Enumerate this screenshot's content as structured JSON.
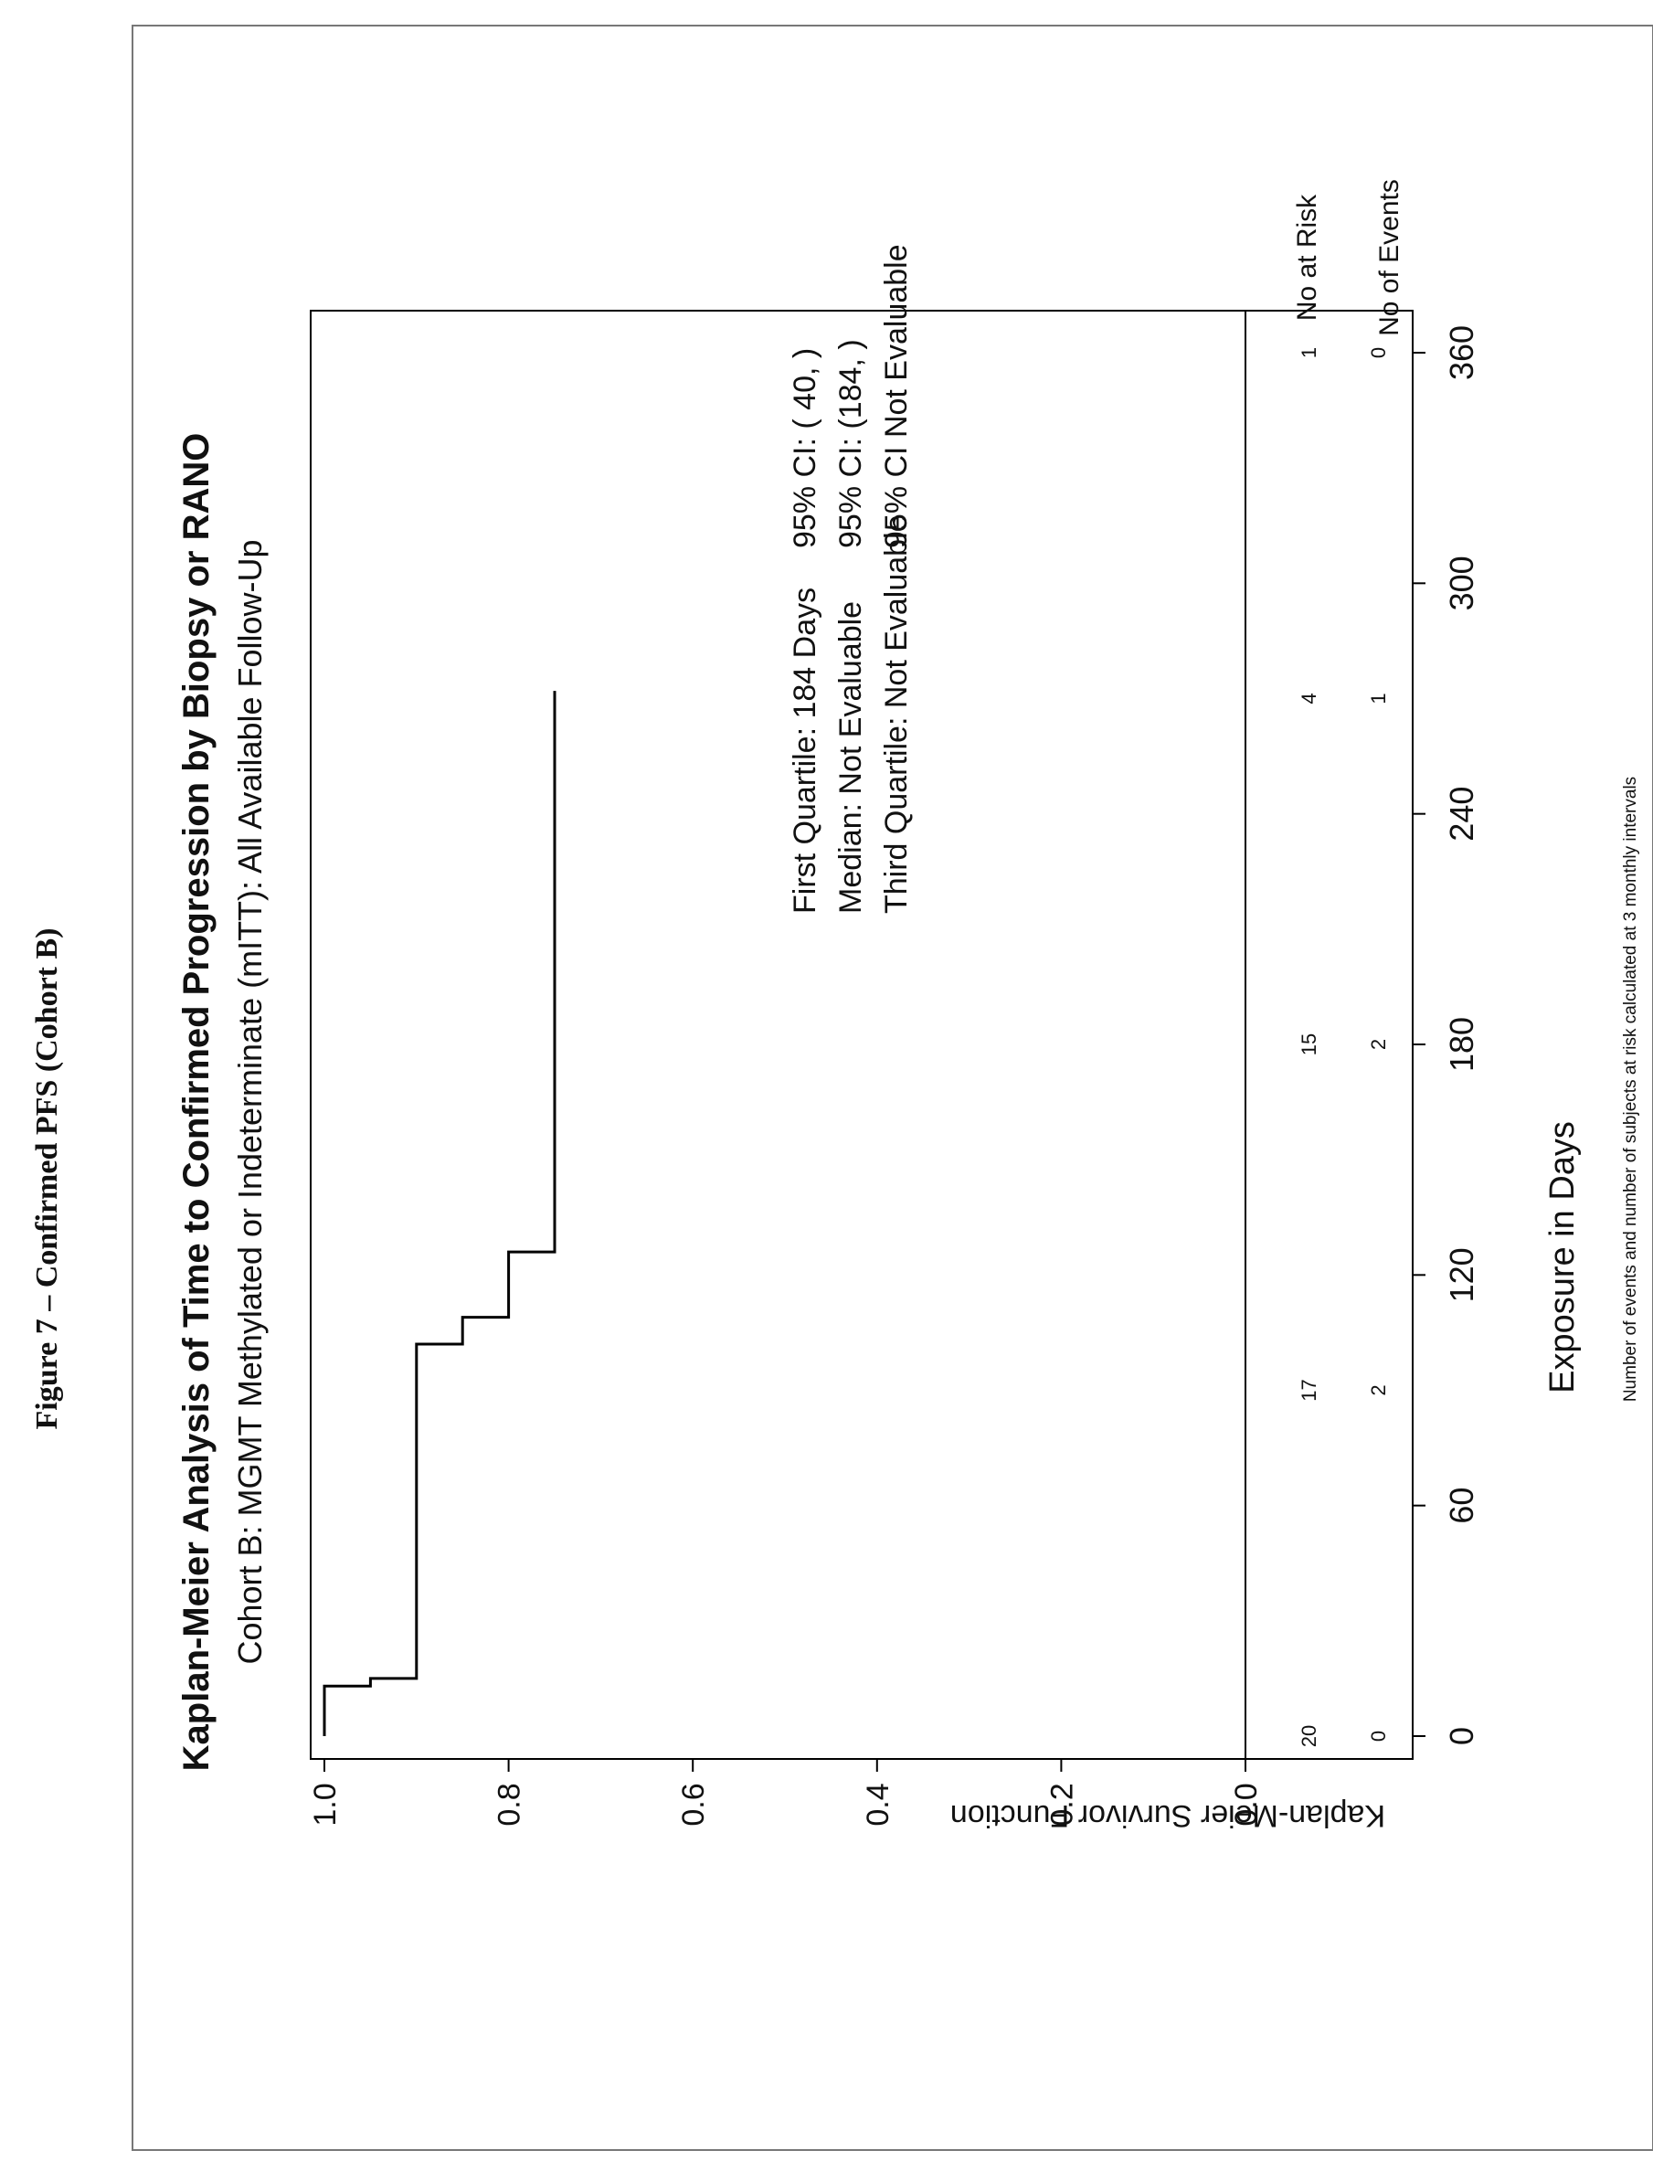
{
  "figure_label": "Figure 7 – Confirmed PFS (Cohort B)",
  "chart_data": {
    "type": "line",
    "title": "Kaplan-Meier Analysis of Time to Confirmed Progression by Biopsy or RANO",
    "subtitle": "Cohort B: MGMT Methylated or Indeterminate (mITT): All Available Follow-Up",
    "xlabel": "Exposure in Days",
    "ylabel": "Kaplan-Meier Survivor Function",
    "xlim": [
      -20,
      375
    ],
    "ylim": [
      -0.03,
      1.02
    ],
    "x_ticks": [
      0,
      60,
      120,
      180,
      240,
      300,
      360
    ],
    "x_tick_labels": [
      "0",
      "60",
      "120",
      "180",
      "240",
      "300",
      "360"
    ],
    "y_ticks": [
      0.0,
      0.2,
      0.4,
      0.6,
      0.8,
      1.0
    ],
    "y_tick_labels": [
      "0.0",
      "0.2",
      "0.4",
      "0.6",
      "0.8",
      "1.0"
    ],
    "grid": false,
    "series": [
      {
        "step_points": [
          [
            0,
            1.0
          ],
          [
            13,
            1.0
          ],
          [
            13,
            0.95
          ],
          [
            15,
            0.95
          ],
          [
            15,
            0.9
          ],
          [
            102,
            0.9
          ],
          [
            102,
            0.85
          ],
          [
            109,
            0.85
          ],
          [
            109,
            0.8
          ],
          [
            126,
            0.8
          ],
          [
            126,
            0.75
          ],
          [
            272,
            0.75
          ]
        ]
      }
    ],
    "annotations": [
      "First Quartile: 184 Days",
      "95% CI: ( 40, )",
      "Median: Not Evaluable",
      "95% CI: (184, )",
      "Third Quartile: Not Evaluable",
      "95% CI Not Evaluable"
    ],
    "risk_table": {
      "at_risk_label": "No at Risk",
      "events_label": "No of Events",
      "times": [
        0,
        90,
        180,
        270,
        360
      ],
      "at_risk": [
        "20",
        "17",
        "15",
        "4",
        "1"
      ],
      "events": [
        "0",
        "2",
        "2",
        "1",
        "0"
      ]
    }
  },
  "footnote": "Number of events and number of subjects at risk calculated at 3 monthly intervals"
}
